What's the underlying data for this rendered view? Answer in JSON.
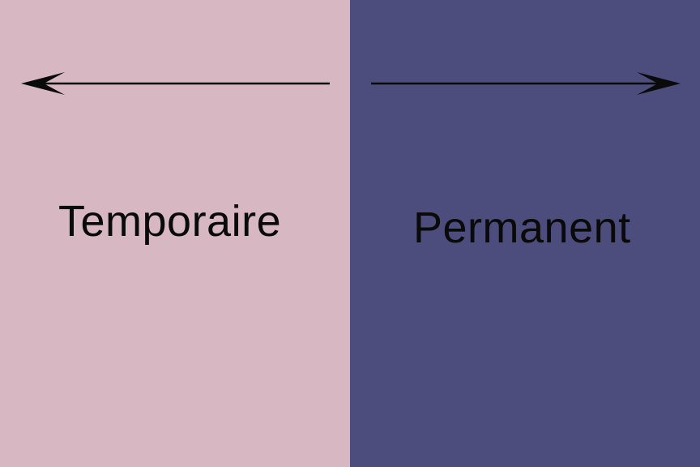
{
  "colors": {
    "left_background": "#d6b7c2",
    "right_background": "#4c4c7d",
    "arrow": "#0a0a0a"
  },
  "left": {
    "label": "Temporaire",
    "arrow_icon": "arrow-left-icon"
  },
  "right": {
    "label": "Permanent",
    "arrow_icon": "arrow-right-icon"
  }
}
